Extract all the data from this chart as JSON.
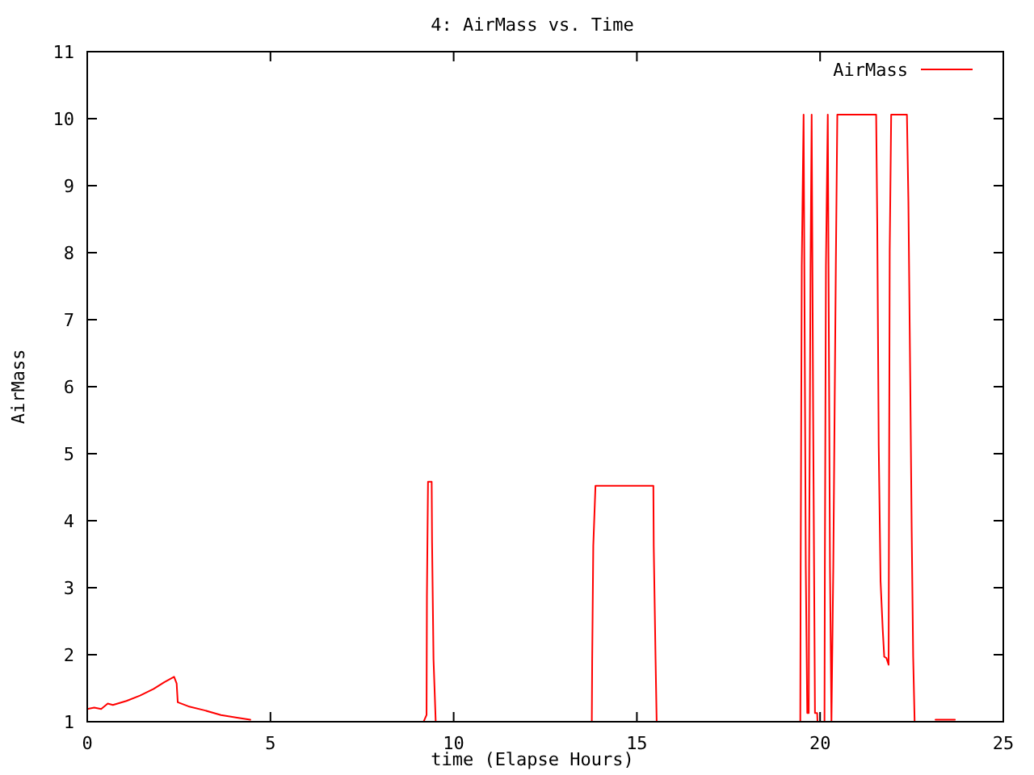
{
  "chart_data": {
    "type": "line",
    "title": "4: AirMass vs. Time",
    "xlabel": "time (Elapse Hours)",
    "ylabel": "AirMass",
    "x": [
      0,
      0.19,
      0.38,
      0.56,
      0.7,
      1.07,
      1.44,
      1.81,
      2.1,
      2.37,
      2.44,
      2.47,
      2.76,
      3.2,
      3.65,
      4.09,
      4.45,
      6.8,
      9.18,
      9.26,
      9.27,
      9.3,
      9.4,
      9.41,
      9.45,
      9.51,
      11.6,
      13.77,
      13.78,
      13.81,
      13.87,
      15.45,
      15.46,
      15.51,
      15.54,
      17.5,
      19.46,
      19.47,
      19.5,
      19.55,
      19.57,
      19.61,
      19.65,
      19.69,
      19.7,
      19.74,
      19.77,
      19.81,
      19.86,
      19.92,
      19.93,
      20.12,
      20.13,
      20.16,
      20.21,
      20.23,
      20.27,
      20.31,
      20.36,
      20.43,
      20.47,
      21.53,
      21.56,
      21.6,
      21.65,
      21.71,
      21.75,
      21.81,
      21.87,
      21.88,
      21.9,
      21.94,
      22.37,
      22.41,
      22.46,
      22.5,
      22.54,
      22.58,
      22.9,
      23.15,
      23.68
    ],
    "series": [
      {
        "name": "AirMass",
        "color": "#ff0000",
        "values": [
          1.19,
          1.21,
          1.19,
          1.27,
          1.25,
          1.31,
          1.39,
          1.49,
          1.59,
          1.67,
          1.57,
          1.29,
          1.23,
          1.17,
          1.1,
          1.06,
          1.03,
          null,
          1.0,
          1.1,
          2.86,
          4.58,
          4.58,
          3.7,
          1.93,
          1.0,
          null,
          1.0,
          1.89,
          3.62,
          4.52,
          4.52,
          3.62,
          1.93,
          1.0,
          null,
          1.0,
          3.3,
          7.81,
          10.06,
          7.81,
          3.3,
          1.13,
          1.13,
          3.3,
          7.81,
          10.06,
          5.63,
          1.13,
          1.13,
          1.0,
          1.0,
          3.3,
          7.81,
          10.06,
          7.81,
          3.3,
          1.0,
          3.3,
          7.81,
          10.06,
          10.06,
          8.44,
          5.12,
          3.1,
          2.37,
          1.97,
          1.95,
          1.85,
          3.92,
          8.02,
          10.06,
          10.06,
          8.76,
          6.11,
          3.84,
          1.97,
          1.0,
          null,
          1.03,
          1.03
        ]
      }
    ],
    "xlim": [
      0,
      25
    ],
    "ylim": [
      1,
      11
    ],
    "xticks": [
      0,
      5,
      10,
      15,
      20,
      25
    ],
    "yticks": [
      1,
      2,
      3,
      4,
      5,
      6,
      7,
      8,
      9,
      10,
      11
    ],
    "legend": "top right"
  }
}
